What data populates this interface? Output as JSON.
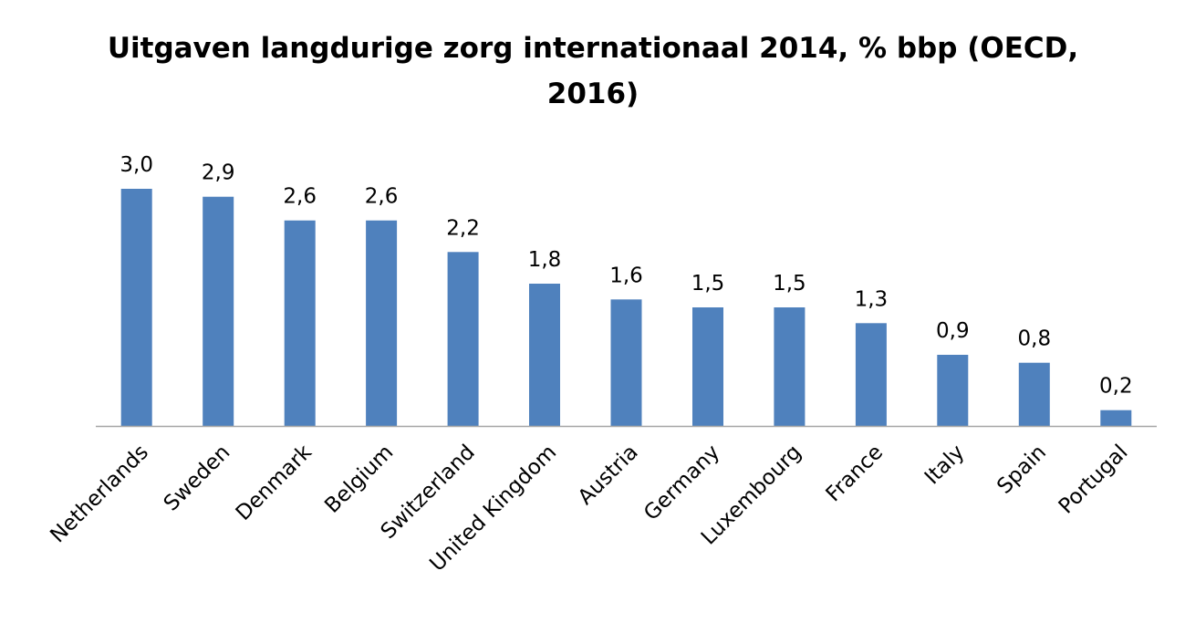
{
  "chart_data": {
    "type": "bar",
    "title": "Uitgaven langdurige zorg internationaal 2014, % bbp (OECD, 2016)",
    "categories": [
      "Netherlands",
      "Sweden",
      "Denmark",
      "Belgium",
      "Switzerland",
      "United Kingdom",
      "Austria",
      "Germany",
      "Luxembourg",
      "France",
      "Italy",
      "Spain",
      "Portugal"
    ],
    "values": [
      3.0,
      2.9,
      2.6,
      2.6,
      2.2,
      1.8,
      1.6,
      1.5,
      1.5,
      1.3,
      0.9,
      0.8,
      0.2
    ],
    "value_labels": [
      "3,0",
      "2,9",
      "2,6",
      "2,6",
      "2,2",
      "1,8",
      "1,6",
      "1,5",
      "1,5",
      "1,3",
      "0,9",
      "0,8",
      "0,2"
    ],
    "ylim": [
      0,
      3.0
    ],
    "grid": false,
    "legend": "none",
    "bar_color": "#4F81BD",
    "axis_color": "#A6A6A6"
  }
}
